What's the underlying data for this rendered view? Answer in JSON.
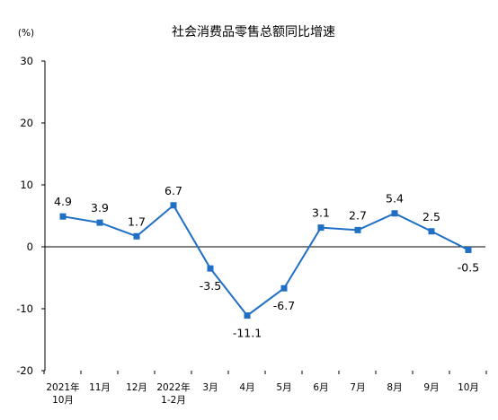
{
  "chart_data": {
    "type": "line",
    "title": "社会消费品零售总额同比增速",
    "y_unit": "(%)",
    "ylim": [
      -20,
      30
    ],
    "y_ticks": [
      "-20",
      "-10",
      "0",
      "10",
      "20",
      "30"
    ],
    "categories": [
      "2021年10月",
      "11月",
      "12月",
      "2022年1-2月",
      "3月",
      "4月",
      "5月",
      "6月",
      "7月",
      "8月",
      "9月",
      "10月"
    ],
    "category_lines": [
      [
        "2021年",
        "10月"
      ],
      [
        "11月"
      ],
      [
        "12月"
      ],
      [
        "2022年",
        "1-2月"
      ],
      [
        "3月"
      ],
      [
        "4月"
      ],
      [
        "5月"
      ],
      [
        "6月"
      ],
      [
        "7月"
      ],
      [
        "8月"
      ],
      [
        "9月"
      ],
      [
        "10月"
      ]
    ],
    "series": [
      {
        "values": [
          4.9,
          3.9,
          1.7,
          6.7,
          -3.5,
          -11.1,
          -6.7,
          3.1,
          2.7,
          5.4,
          2.5,
          -0.5
        ],
        "labels": [
          "4.9",
          "3.9",
          "1.7",
          "6.7",
          "-3.5",
          "-11.1",
          "-6.7",
          "3.1",
          "2.7",
          "5.4",
          "2.5",
          "-0.5"
        ],
        "color": "#1f6fc5"
      }
    ],
    "label_positions": [
      "above",
      "above",
      "above",
      "above",
      "below",
      "below",
      "below",
      "above",
      "above",
      "above",
      "above",
      "below"
    ],
    "grid": false
  }
}
